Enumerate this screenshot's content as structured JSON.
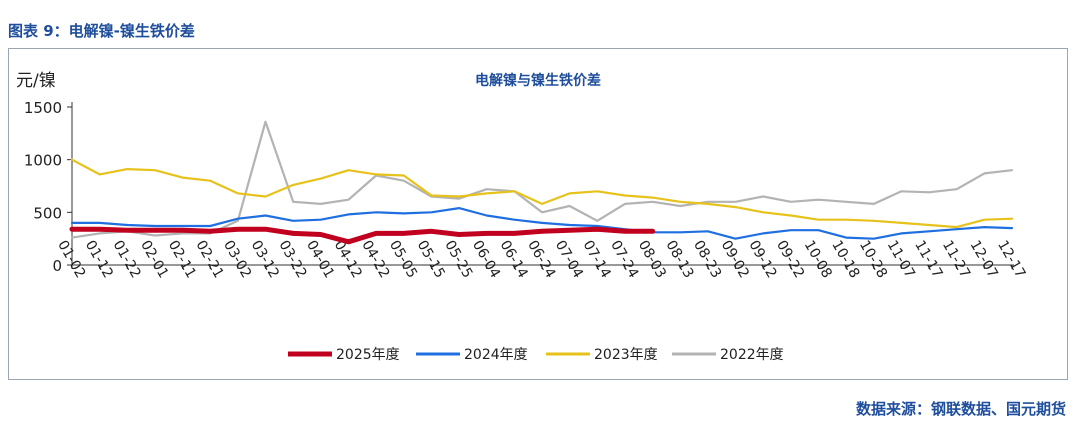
{
  "figure_label": "图表 9：电解镍-镍生铁价差",
  "source_text": "数据来源：钢联数据、国元期货",
  "colors": {
    "title": "#1f4e9c",
    "2025": "#c0001e",
    "2024": "#1f6fe0",
    "2023": "#e6c21a",
    "2022": "#b3b3b3"
  },
  "chart_data": {
    "type": "line",
    "title": "电解镍与镍生铁价差",
    "ylabel": "元/镍",
    "ylim": [
      0,
      1500
    ],
    "yticks": [
      0,
      500,
      1000,
      1500
    ],
    "grid": false,
    "legend_position": "bottom",
    "categories": [
      "01-02",
      "01-12",
      "01-22",
      "02-01",
      "02-11",
      "02-21",
      "03-02",
      "03-12",
      "03-22",
      "04-01",
      "04-12",
      "04-22",
      "05-05",
      "05-15",
      "05-25",
      "06-04",
      "06-14",
      "06-24",
      "07-04",
      "07-14",
      "07-24",
      "08-03",
      "08-13",
      "08-23",
      "09-02",
      "09-12",
      "09-22",
      "10-08",
      "10-18",
      "10-28",
      "11-07",
      "11-17",
      "11-27",
      "12-07",
      "12-17"
    ],
    "series": [
      {
        "name": "2025年度",
        "key": "2025",
        "values": [
          340,
          340,
          330,
          330,
          330,
          320,
          340,
          340,
          300,
          290,
          220,
          300,
          300,
          320,
          290,
          300,
          300,
          320,
          330,
          340,
          320,
          320,
          null,
          null,
          null,
          null,
          null,
          null,
          null,
          null,
          null,
          null,
          null,
          null,
          null
        ]
      },
      {
        "name": "2024年度",
        "key": "2024",
        "values": [
          400,
          400,
          380,
          370,
          370,
          370,
          440,
          470,
          420,
          430,
          480,
          500,
          490,
          500,
          540,
          470,
          430,
          400,
          380,
          370,
          340,
          310,
          310,
          320,
          250,
          300,
          330,
          330,
          260,
          250,
          300,
          320,
          340,
          360,
          350
        ]
      },
      {
        "name": "2023年度",
        "key": "2023",
        "values": [
          1000,
          860,
          910,
          900,
          830,
          800,
          680,
          650,
          760,
          820,
          900,
          860,
          850,
          660,
          650,
          680,
          700,
          580,
          680,
          700,
          660,
          640,
          600,
          580,
          550,
          500,
          470,
          430,
          430,
          420,
          400,
          380,
          360,
          430,
          440
        ]
      },
      {
        "name": "2022年度",
        "key": "2022",
        "values": [
          260,
          300,
          320,
          280,
          300,
          300,
          420,
          1360,
          600,
          580,
          620,
          850,
          800,
          650,
          630,
          720,
          700,
          500,
          560,
          420,
          580,
          600,
          560,
          600,
          600,
          650,
          600,
          620,
          600,
          580,
          700,
          690,
          720,
          870,
          900
        ]
      }
    ]
  }
}
